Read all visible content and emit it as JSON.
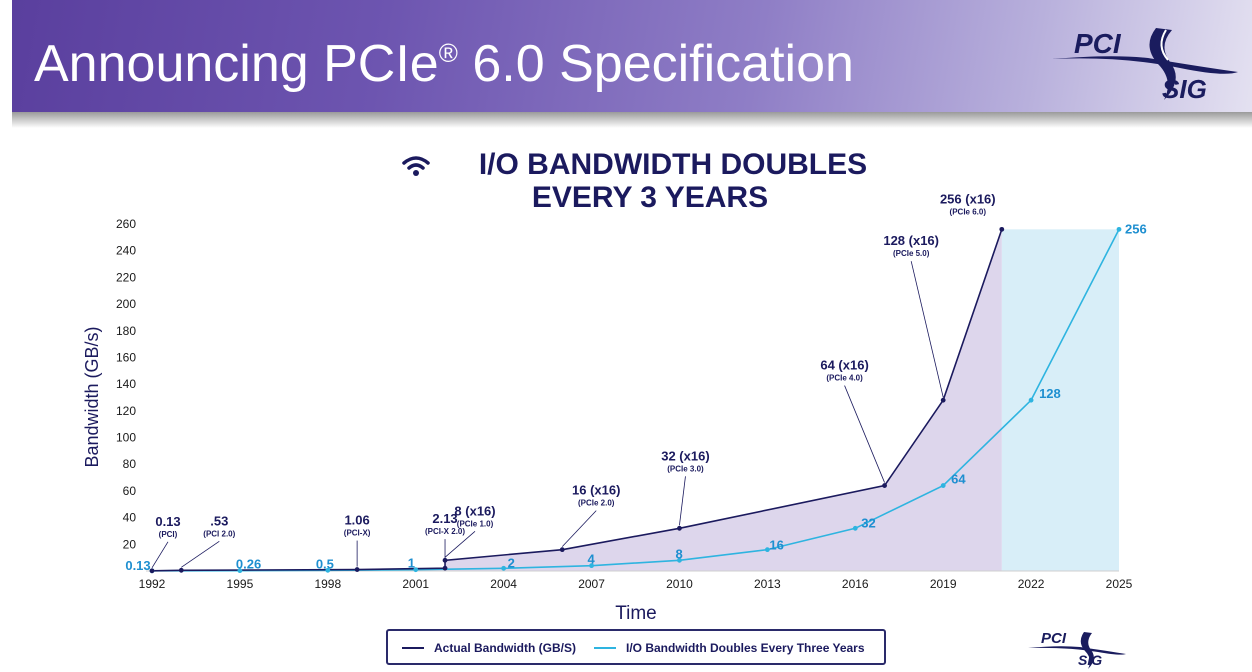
{
  "header": {
    "title": "Announcing PCIe",
    "title_sup": "®",
    "title_suffix": " 6.0 Specification",
    "logo_top": "PCI",
    "logo_bottom": "SIG"
  },
  "chart_title_line1": "I/O BANDWIDTH DOUBLES",
  "chart_title_line2": "EVERY 3 YEARS",
  "colors": {
    "actual": "#1b1a5e",
    "doubling": "#2eb4e0",
    "actual_fill": "#ddd6ec",
    "doubling_fill": "#d8eef8",
    "doubling_label": "#1e8fd0"
  },
  "footer_logo_top": "PCI",
  "footer_logo_bottom": "SIG",
  "chart_data": {
    "type": "line",
    "xlabel": "Time",
    "ylabel": "Bandwidth (GB/s)",
    "xlim": [
      1992,
      2025
    ],
    "ylim": [
      0,
      260
    ],
    "x_ticks": [
      1992,
      1995,
      1998,
      2001,
      2004,
      2007,
      2010,
      2013,
      2016,
      2019,
      2022,
      2025
    ],
    "y_ticks": [
      20,
      40,
      60,
      80,
      100,
      120,
      140,
      160,
      180,
      200,
      220,
      240,
      260
    ],
    "grid": false,
    "legend_position": "bottom",
    "series": [
      {
        "name": "Actual Bandwidth (GB/S)",
        "points": [
          {
            "x": 1992,
            "y": 0.13,
            "label": "0.13",
            "sub": "(PCI)"
          },
          {
            "x": 1993,
            "y": 0.53,
            "label": ".53",
            "sub": "(PCI 2.0)"
          },
          {
            "x": 1999,
            "y": 1.06,
            "label": "1.06",
            "sub": "(PCI-X)"
          },
          {
            "x": 2002,
            "y": 2.13,
            "label": "2.13",
            "sub": "(PCI-X 2.0)"
          },
          {
            "x": 2002,
            "y": 8,
            "label": "8 (x16)",
            "sub": "(PCIe 1.0)"
          },
          {
            "x": 2006,
            "y": 16,
            "label": "16 (x16)",
            "sub": "(PCIe 2.0)"
          },
          {
            "x": 2010,
            "y": 32,
            "label": "32 (x16)",
            "sub": "(PCIe 3.0)"
          },
          {
            "x": 2017,
            "y": 64,
            "label": "64 (x16)",
            "sub": "(PCIe 4.0)"
          },
          {
            "x": 2019,
            "y": 128,
            "label": "128 (x16)",
            "sub": "(PCIe 5.0)"
          },
          {
            "x": 2021,
            "y": 256,
            "label": "256 (x16)",
            "sub": "(PCIe 6.0)"
          }
        ]
      },
      {
        "name": "I/O Bandwidth Doubles Every Three Years",
        "points": [
          {
            "x": 1992,
            "y": 0.13,
            "label": "0.13"
          },
          {
            "x": 1995,
            "y": 0.26,
            "label": "0.26"
          },
          {
            "x": 1998,
            "y": 0.5,
            "label": "0.5"
          },
          {
            "x": 2001,
            "y": 1,
            "label": "1"
          },
          {
            "x": 2004,
            "y": 2,
            "label": "2"
          },
          {
            "x": 2007,
            "y": 4,
            "label": "4"
          },
          {
            "x": 2010,
            "y": 8,
            "label": "8"
          },
          {
            "x": 2013,
            "y": 16,
            "label": "16"
          },
          {
            "x": 2016,
            "y": 32,
            "label": "32"
          },
          {
            "x": 2019,
            "y": 64,
            "label": "64"
          },
          {
            "x": 2022,
            "y": 128,
            "label": "128"
          },
          {
            "x": 2025,
            "y": 256,
            "label": "256"
          }
        ]
      }
    ]
  }
}
